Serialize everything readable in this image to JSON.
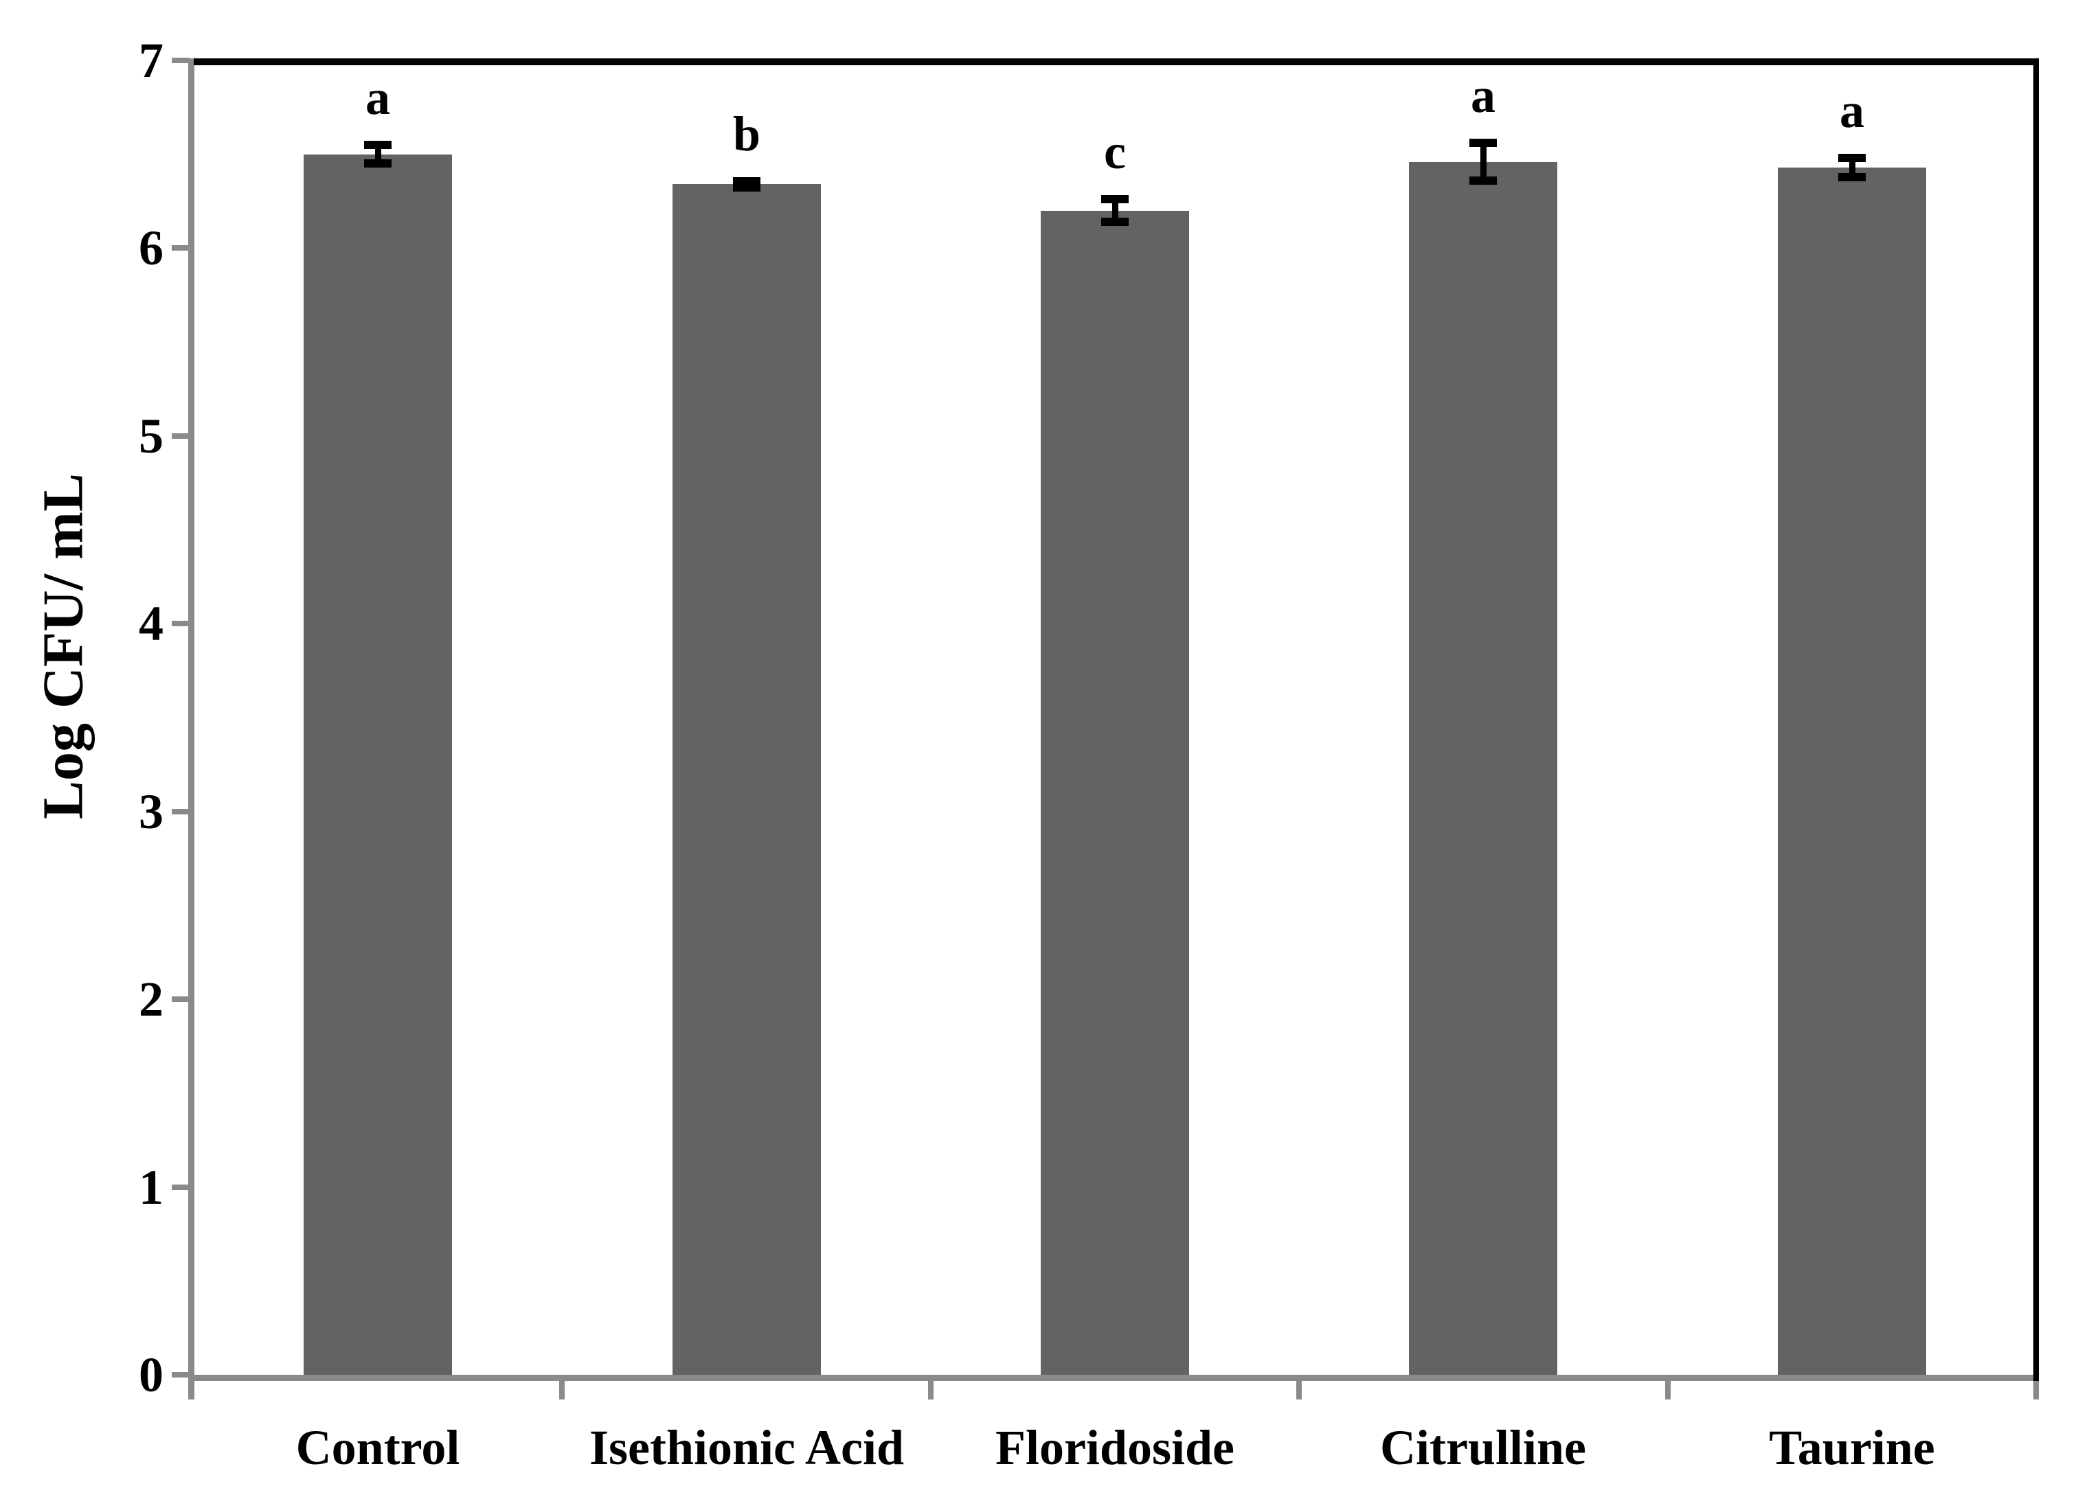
{
  "chart_data": {
    "type": "bar",
    "title": "",
    "ylabel": "Log CFU/ mL",
    "xlabel": "",
    "categories": [
      "Control",
      "Isethionic Acid",
      "Floridoside",
      "Citrulline",
      "Taurine"
    ],
    "values": [
      6.5,
      6.34,
      6.2,
      6.46,
      6.43
    ],
    "errors": [
      0.05,
      0.015,
      0.06,
      0.1,
      0.05
    ],
    "sig_letters": [
      "a",
      "b",
      "c",
      "a",
      "a"
    ],
    "ylim": [
      0,
      7
    ],
    "yticks": [
      "0",
      "1",
      "2",
      "3",
      "4",
      "5",
      "6",
      "7"
    ],
    "grid": false,
    "legend": null,
    "bar_color": "#636363",
    "axis_color": "#8a8a8a",
    "border_color": "#000000",
    "error_bar_color": "#000000",
    "text_color": "#000000"
  }
}
